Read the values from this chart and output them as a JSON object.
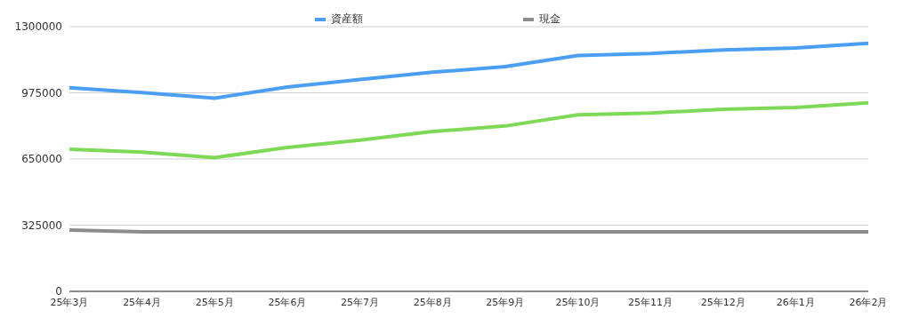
{
  "chart_data": {
    "type": "line",
    "categories": [
      "25年3月",
      "25年4月",
      "25年5月",
      "25年6月",
      "25年7月",
      "25年8月",
      "25年9月",
      "25年10月",
      "25年11月",
      "25年12月",
      "26年1月",
      "26年2月"
    ],
    "series": [
      {
        "name": "資産額",
        "color": "#4a9ff5",
        "values": [
          1000000,
          976000,
          949000,
          1003000,
          1040000,
          1076000,
          1104000,
          1158000,
          1168000,
          1186000,
          1195000,
          1218000
        ]
      },
      {
        "color": "#7ed957",
        "values": [
          698000,
          684000,
          657000,
          707000,
          743000,
          785000,
          812000,
          867000,
          876000,
          894000,
          903000,
          926000
        ]
      },
      {
        "name": "現金",
        "color": "#8c8c8c",
        "values": [
          301000,
          292000,
          292000,
          292000,
          292000,
          292000,
          292000,
          292000,
          292000,
          292000,
          292000,
          292000
        ]
      }
    ],
    "ylim": [
      0,
      1300000
    ],
    "yticks": [
      0,
      325000,
      650000,
      975000,
      1300000
    ],
    "grid": "y",
    "legend": "top",
    "marker": "none",
    "line_style": "solid"
  }
}
